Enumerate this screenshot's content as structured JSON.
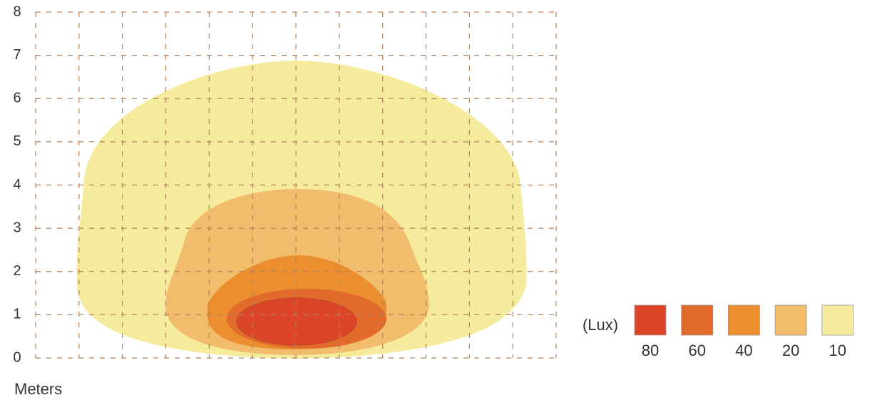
{
  "chart_data": {
    "type": "isolux",
    "axis_label": "Meters",
    "legend_title": "(Lux)",
    "ylim": [
      0,
      8
    ],
    "yticks": [
      0,
      1,
      2,
      3,
      4,
      5,
      6,
      7,
      8
    ],
    "grid": true,
    "levels": [
      80,
      60,
      40,
      20,
      10
    ],
    "colors": [
      "#dc4528",
      "#e26b2c",
      "#eb8e30",
      "#f2bc6d",
      "#f4ec9c"
    ]
  }
}
